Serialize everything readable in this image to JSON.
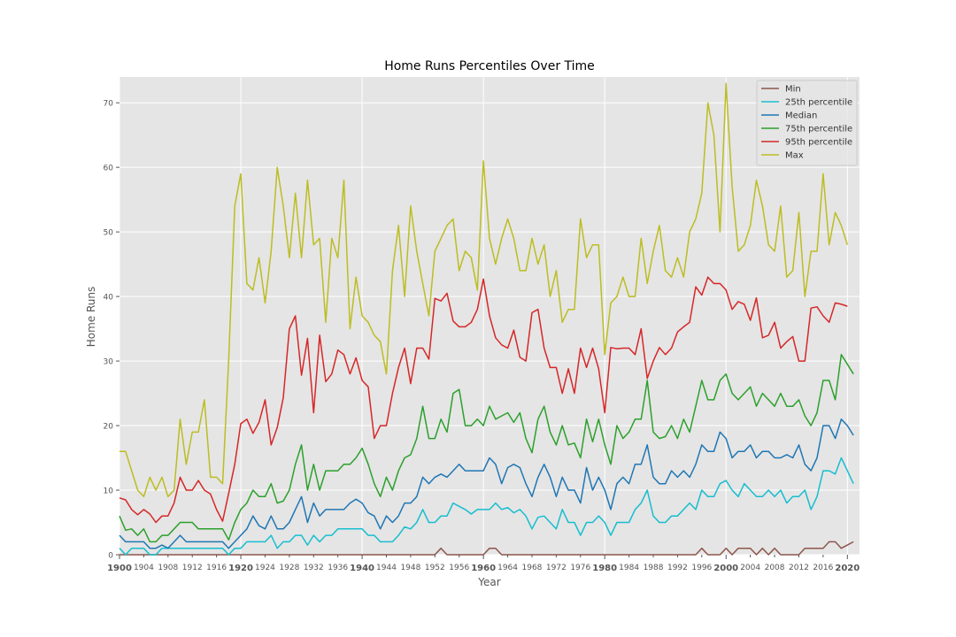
{
  "chart_data": {
    "type": "line",
    "title": "Home Runs Percentiles Over Time",
    "xlabel": "Year",
    "ylabel": "Home Runs",
    "xlim": [
      1900,
      2022
    ],
    "ylim": [
      0,
      74
    ],
    "grid": true,
    "legend_position": "top-right",
    "x_start": 1900,
    "y_ticks": [
      0,
      10,
      20,
      30,
      40,
      50,
      60,
      70
    ],
    "x_ticks_minor": [
      1904,
      1908,
      1912,
      1916,
      1924,
      1928,
      1932,
      1936,
      1944,
      1948,
      1952,
      1956,
      1964,
      1968,
      1972,
      1976,
      1984,
      1988,
      1992,
      1996,
      2004,
      2008,
      2012,
      2016
    ],
    "x_ticks_major": [
      1900,
      1920,
      1940,
      1960,
      1980,
      2000,
      2020
    ],
    "series": [
      {
        "name": "Min",
        "color": "#8c564b",
        "values": [
          0,
          0,
          0,
          0,
          0,
          0,
          0,
          0,
          0,
          0,
          0,
          0,
          0,
          0,
          0,
          0,
          0,
          0,
          0,
          0,
          0,
          0,
          0,
          0,
          0,
          0,
          0,
          0,
          0,
          0,
          0,
          0,
          0,
          0,
          0,
          0,
          0,
          0,
          0,
          0,
          0,
          0,
          0,
          0,
          0,
          0,
          0,
          0,
          0,
          0,
          0,
          0,
          0,
          1,
          0,
          0,
          0,
          0,
          0,
          0,
          0,
          1,
          1,
          0,
          0,
          0,
          0,
          0,
          0,
          0,
          0,
          0,
          0,
          0,
          0,
          0,
          0,
          0,
          0,
          0,
          0,
          0,
          0,
          0,
          0,
          0,
          0,
          0,
          0,
          0,
          0,
          0,
          0,
          0,
          0,
          0,
          1,
          0,
          0,
          0,
          1,
          0,
          1,
          1,
          1,
          0,
          1,
          0,
          1,
          0,
          0,
          0,
          0,
          1,
          1,
          1,
          1,
          2,
          2,
          1,
          1.5,
          2
        ]
      },
      {
        "name": "25th percentile",
        "color": "#17becf",
        "values": [
          1,
          0,
          1,
          1,
          1,
          0,
          0,
          1,
          1,
          1,
          1,
          1,
          1,
          1,
          1,
          1,
          1,
          1,
          0,
          1,
          1,
          2,
          2,
          2,
          2,
          3,
          1,
          2,
          2,
          3,
          3,
          1.5,
          3,
          2,
          3,
          3,
          4,
          4,
          4,
          4,
          4,
          3,
          3,
          2,
          2,
          2,
          3,
          4.3,
          4,
          5,
          7,
          5,
          5,
          6,
          6,
          8,
          7.5,
          7,
          6.3,
          7,
          7,
          7,
          8,
          7,
          7.3,
          6.5,
          7,
          6,
          4,
          5.8,
          6,
          5,
          4,
          7,
          5,
          5,
          3,
          5,
          5,
          6,
          5,
          3,
          5,
          5,
          5,
          7,
          8,
          10,
          6,
          5,
          5,
          6,
          6,
          7,
          8,
          7,
          10,
          9,
          9,
          11,
          11.5,
          10,
          9,
          11,
          10,
          9,
          9,
          10,
          9,
          10,
          8,
          9,
          9,
          10,
          7,
          9,
          13,
          13,
          12.5,
          15,
          13,
          11
        ]
      },
      {
        "name": "Median",
        "color": "#1f77b4",
        "values": [
          3,
          2,
          2,
          2,
          2,
          1,
          1,
          1.5,
          1,
          2,
          3,
          2,
          2,
          2,
          2,
          2,
          2,
          2,
          1,
          2,
          3,
          4,
          6,
          4.5,
          4,
          6,
          4,
          4,
          5,
          7,
          9,
          5,
          8,
          6,
          7,
          7,
          7,
          7,
          8,
          8.6,
          8,
          6.5,
          6,
          4,
          6,
          5,
          6,
          8,
          8,
          9,
          12,
          11,
          12,
          12.5,
          12,
          13,
          14,
          13,
          13,
          13,
          13,
          15,
          14,
          11,
          13.5,
          14,
          13.5,
          11,
          9,
          12,
          14,
          12,
          9,
          12,
          10,
          10,
          8,
          13.5,
          10,
          12,
          10,
          7,
          11,
          12,
          11,
          14,
          14,
          17,
          12,
          11,
          11,
          13,
          12,
          13,
          12,
          14,
          17,
          16,
          16,
          19,
          18,
          15,
          16,
          16,
          17,
          15,
          16,
          16,
          15,
          15,
          15.5,
          15,
          17,
          14,
          13,
          15,
          20,
          20,
          18,
          21,
          20,
          18.5
        ]
      },
      {
        "name": "75th percentile",
        "color": "#2ca02c",
        "values": [
          6,
          3.8,
          4,
          3,
          4,
          2,
          2,
          3,
          3,
          4,
          5,
          5,
          5,
          4,
          4,
          4,
          4,
          4,
          2.3,
          5,
          7,
          8,
          10,
          9,
          9,
          11,
          8,
          8.3,
          10,
          14,
          17,
          10,
          14,
          10,
          13,
          13,
          13,
          14,
          14,
          15,
          16.5,
          14,
          11,
          9,
          12,
          10,
          13,
          15,
          15.5,
          18,
          23,
          18,
          18,
          21,
          19,
          25,
          25.6,
          20,
          20,
          21,
          20,
          23,
          21,
          21.5,
          22,
          20.5,
          22,
          18,
          15.8,
          21,
          23,
          19,
          17,
          20,
          17,
          17.3,
          15,
          21,
          17.5,
          21,
          17,
          14,
          20,
          18,
          19,
          21,
          21,
          27,
          19,
          18,
          18.3,
          20,
          18,
          21,
          19,
          23,
          27,
          24,
          24,
          27,
          28,
          25,
          24,
          25,
          26,
          23,
          25,
          24,
          23,
          25,
          23,
          23,
          24,
          21.5,
          20,
          22,
          27,
          27,
          24,
          31,
          29.5,
          28
        ]
      },
      {
        "name": "95th percentile",
        "color": "#d62728",
        "values": [
          8.8,
          8.5,
          7,
          6.2,
          7,
          6.3,
          5,
          6,
          6,
          8,
          12,
          10,
          10,
          11.5,
          10,
          9.4,
          7,
          5.2,
          9.5,
          14,
          20.3,
          21,
          18.8,
          20.5,
          24,
          17,
          19.7,
          24.3,
          35,
          37,
          27.8,
          33.5,
          22,
          34,
          26.8,
          28,
          31.7,
          31,
          28,
          30.5,
          27,
          26,
          18,
          20,
          20,
          25,
          29,
          32,
          26.5,
          32,
          32,
          30.3,
          39.7,
          39.3,
          40.5,
          36.2,
          35.3,
          35.3,
          36,
          38,
          42.7,
          37,
          33.6,
          32.5,
          32,
          34.8,
          30.6,
          30,
          37.5,
          38,
          32,
          29,
          29,
          25,
          28.8,
          25,
          32,
          29,
          32,
          28.8,
          22,
          32.1,
          31.9,
          32,
          32,
          31,
          35,
          27.3,
          30,
          32.1,
          31,
          32,
          34.5,
          35.3,
          36,
          41.5,
          40.2,
          43,
          42,
          42,
          41,
          38,
          39.2,
          38.8,
          36.3,
          39.8,
          33.6,
          34,
          36,
          32,
          33,
          33.8,
          30,
          30,
          38.2,
          38.4,
          37,
          36,
          39,
          38.8,
          38.5
        ]
      },
      {
        "name": "Max",
        "color": "#bcbd22",
        "values": [
          16,
          16,
          13,
          10,
          9,
          12,
          10,
          12,
          9,
          10,
          21,
          14,
          19,
          19,
          24,
          12,
          12,
          11,
          30,
          54,
          59,
          42,
          41,
          46,
          39,
          47,
          60,
          54,
          46,
          56,
          46,
          58,
          48,
          49,
          36,
          49,
          46,
          58,
          35,
          43,
          37,
          36,
          34,
          33,
          28,
          44,
          51,
          40,
          54,
          47,
          42,
          37,
          47,
          49,
          51,
          52,
          44,
          47,
          46,
          41,
          61,
          49,
          45,
          49,
          52,
          49,
          44,
          44,
          49,
          45,
          48,
          40,
          44,
          36,
          38,
          38,
          52,
          46,
          48,
          48,
          31,
          39,
          40,
          43,
          40,
          40,
          49,
          42,
          47,
          51,
          44,
          43,
          46,
          43,
          50,
          52,
          56,
          70,
          65,
          50,
          73,
          57,
          47,
          48,
          51,
          58,
          54,
          48,
          47,
          54,
          43,
          44,
          53,
          40,
          47,
          47,
          59,
          48,
          53,
          51,
          48
        ]
      }
    ]
  }
}
